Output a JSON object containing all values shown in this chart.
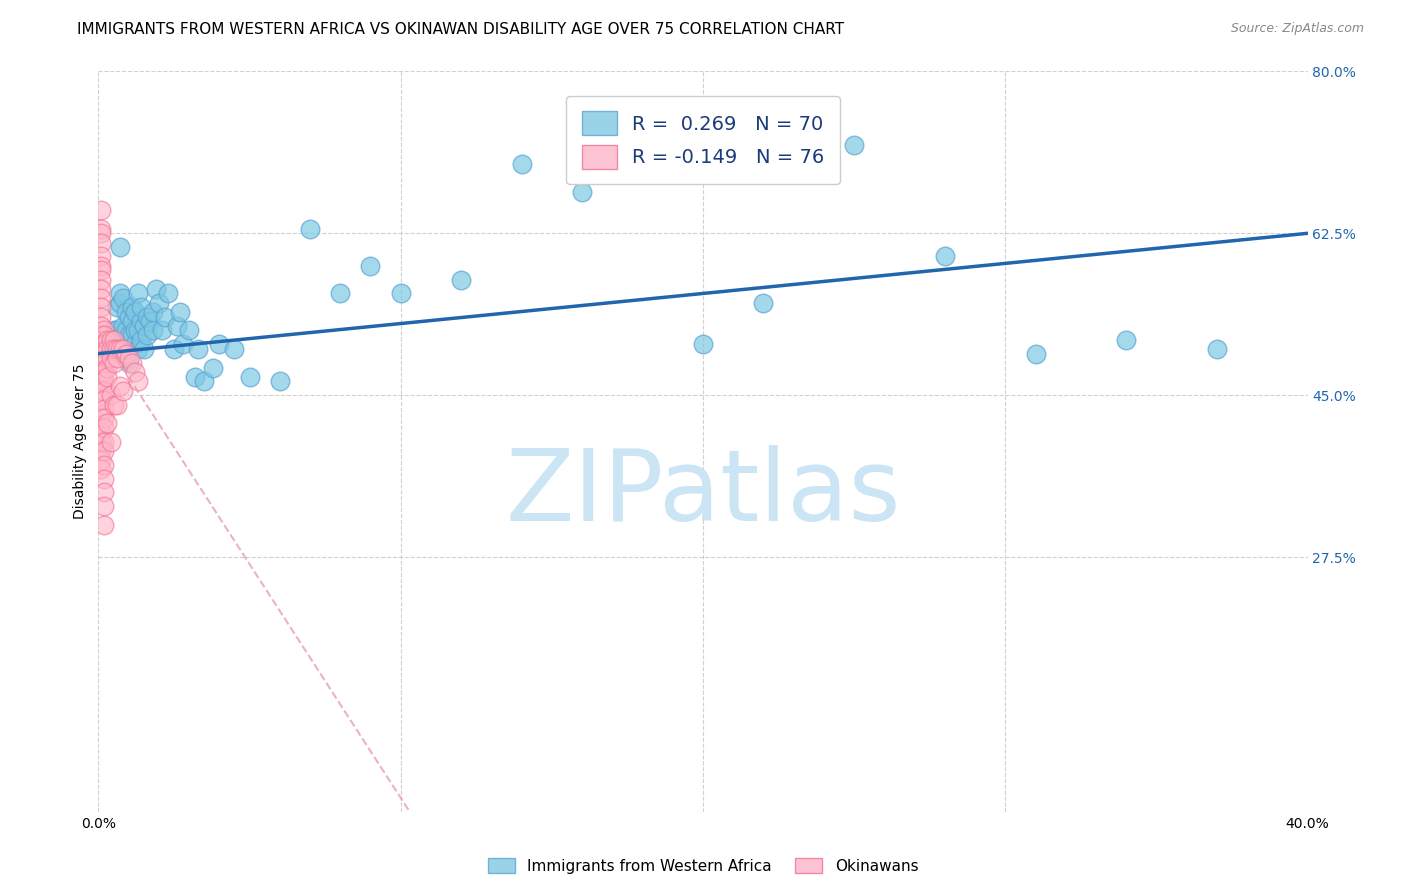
{
  "title": "IMMIGRANTS FROM WESTERN AFRICA VS OKINAWAN DISABILITY AGE OVER 75 CORRELATION CHART",
  "source": "Source: ZipAtlas.com",
  "ylabel": "Disability Age Over 75",
  "xlabel_blue": "Immigrants from Western Africa",
  "xlabel_pink": "Okinawans",
  "R_blue": 0.269,
  "N_blue": 70,
  "R_pink": -0.149,
  "N_pink": 76,
  "xlim": [
    0.0,
    0.4
  ],
  "ylim": [
    0.0,
    0.8
  ],
  "xtick_positions": [
    0.0,
    0.1,
    0.2,
    0.3,
    0.4
  ],
  "xtick_labels": [
    "0.0%",
    "",
    "",
    "",
    "40.0%"
  ],
  "ytick_positions": [
    0.0,
    0.275,
    0.45,
    0.625,
    0.8
  ],
  "ytick_labels": [
    "",
    "27.5%",
    "45.0%",
    "62.5%",
    "80.0%"
  ],
  "blue_color": "#7ec8e3",
  "blue_edge_color": "#5ba3d4",
  "pink_color": "#ffb6c8",
  "pink_edge_color": "#f07090",
  "blue_line_color": "#2166ac",
  "pink_line_color": "#e8a0b0",
  "watermark": "ZIPatlas",
  "watermark_color": "#cce5f5",
  "blue_scatter_x": [
    0.003,
    0.004,
    0.005,
    0.005,
    0.006,
    0.006,
    0.007,
    0.007,
    0.007,
    0.008,
    0.008,
    0.008,
    0.009,
    0.009,
    0.009,
    0.01,
    0.01,
    0.01,
    0.01,
    0.011,
    0.011,
    0.011,
    0.012,
    0.012,
    0.012,
    0.013,
    0.013,
    0.013,
    0.014,
    0.014,
    0.014,
    0.015,
    0.015,
    0.016,
    0.016,
    0.017,
    0.018,
    0.018,
    0.019,
    0.02,
    0.021,
    0.022,
    0.023,
    0.025,
    0.026,
    0.027,
    0.028,
    0.03,
    0.032,
    0.033,
    0.035,
    0.038,
    0.04,
    0.045,
    0.05,
    0.06,
    0.07,
    0.08,
    0.09,
    0.1,
    0.12,
    0.14,
    0.16,
    0.2,
    0.22,
    0.25,
    0.28,
    0.31,
    0.34,
    0.37
  ],
  "blue_scatter_y": [
    0.51,
    0.495,
    0.52,
    0.5,
    0.545,
    0.52,
    0.55,
    0.56,
    0.61,
    0.51,
    0.525,
    0.555,
    0.49,
    0.52,
    0.54,
    0.5,
    0.515,
    0.535,
    0.485,
    0.515,
    0.53,
    0.545,
    0.505,
    0.52,
    0.54,
    0.5,
    0.52,
    0.56,
    0.51,
    0.53,
    0.545,
    0.5,
    0.525,
    0.515,
    0.535,
    0.53,
    0.52,
    0.54,
    0.565,
    0.55,
    0.52,
    0.535,
    0.56,
    0.5,
    0.525,
    0.54,
    0.505,
    0.52,
    0.47,
    0.5,
    0.465,
    0.48,
    0.505,
    0.5,
    0.47,
    0.465,
    0.63,
    0.56,
    0.59,
    0.56,
    0.575,
    0.7,
    0.67,
    0.505,
    0.55,
    0.72,
    0.6,
    0.495,
    0.51,
    0.5
  ],
  "pink_scatter_x": [
    0.001,
    0.001,
    0.001,
    0.001,
    0.001,
    0.001,
    0.001,
    0.001,
    0.001,
    0.001,
    0.001,
    0.001,
    0.001,
    0.001,
    0.001,
    0.001,
    0.001,
    0.001,
    0.001,
    0.001,
    0.001,
    0.001,
    0.001,
    0.001,
    0.001,
    0.001,
    0.001,
    0.001,
    0.001,
    0.001,
    0.002,
    0.002,
    0.002,
    0.002,
    0.002,
    0.002,
    0.002,
    0.002,
    0.002,
    0.002,
    0.002,
    0.002,
    0.002,
    0.002,
    0.002,
    0.002,
    0.002,
    0.002,
    0.002,
    0.003,
    0.003,
    0.003,
    0.003,
    0.003,
    0.003,
    0.004,
    0.004,
    0.004,
    0.004,
    0.004,
    0.005,
    0.005,
    0.005,
    0.005,
    0.006,
    0.006,
    0.006,
    0.007,
    0.007,
    0.008,
    0.008,
    0.009,
    0.01,
    0.011,
    0.012,
    0.013
  ],
  "pink_scatter_y": [
    0.65,
    0.63,
    0.625,
    0.615,
    0.6,
    0.59,
    0.585,
    0.575,
    0.565,
    0.555,
    0.545,
    0.535,
    0.525,
    0.515,
    0.51,
    0.505,
    0.5,
    0.495,
    0.485,
    0.475,
    0.465,
    0.455,
    0.445,
    0.43,
    0.42,
    0.41,
    0.4,
    0.39,
    0.38,
    0.37,
    0.52,
    0.515,
    0.505,
    0.495,
    0.485,
    0.475,
    0.465,
    0.455,
    0.445,
    0.435,
    0.425,
    0.415,
    0.4,
    0.39,
    0.375,
    0.36,
    0.345,
    0.33,
    0.31,
    0.51,
    0.5,
    0.49,
    0.48,
    0.47,
    0.42,
    0.51,
    0.5,
    0.49,
    0.45,
    0.4,
    0.51,
    0.5,
    0.485,
    0.44,
    0.5,
    0.49,
    0.44,
    0.5,
    0.46,
    0.5,
    0.455,
    0.495,
    0.49,
    0.485,
    0.475,
    0.465
  ],
  "title_fontsize": 11,
  "axis_label_fontsize": 10,
  "tick_fontsize": 10,
  "legend_fontsize": 14,
  "watermark_fontsize": 72,
  "background_color": "#ffffff",
  "grid_color": "#d0d0d0"
}
